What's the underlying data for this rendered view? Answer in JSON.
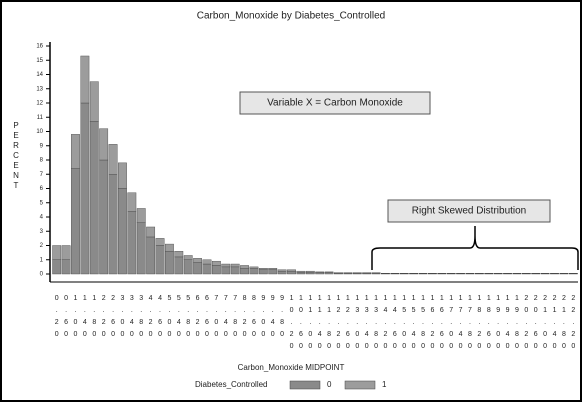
{
  "chart_data": {
    "type": "bar",
    "stacked": true,
    "title": "Carbon_Monoxide by Diabetes_Controlled",
    "y_label": "PERCENT",
    "x_label": "Carbon_Monoxide MIDPOINT",
    "legend_title": "Diabetes_Controlled",
    "annotations": [
      "Variable X = Carbon Monoxide",
      "Right Skewed Distribution"
    ],
    "categories": [
      "0.20",
      "0.60",
      "1.00",
      "1.40",
      "1.80",
      "2.20",
      "2.60",
      "3.00",
      "3.40",
      "3.80",
      "4.20",
      "4.60",
      "5.00",
      "5.40",
      "5.80",
      "6.20",
      "6.60",
      "7.00",
      "7.40",
      "7.80",
      "8.20",
      "8.60",
      "9.00",
      "9.40",
      "9.80",
      "10.20",
      "10.60",
      "11.00",
      "11.40",
      "11.80",
      "12.20",
      "12.60",
      "13.00",
      "13.40",
      "13.80",
      "14.20",
      "14.60",
      "15.00",
      "15.40",
      "15.80",
      "16.20",
      "16.60",
      "17.00",
      "17.40",
      "17.80",
      "18.20",
      "18.60",
      "19.00",
      "19.40",
      "19.80",
      "20.20",
      "20.60",
      "21.00",
      "21.40",
      "21.80",
      "22.20"
    ],
    "series": [
      {
        "name": "0",
        "color": "#8a8a8a",
        "values": [
          1,
          1,
          7.4,
          12,
          10.7,
          8,
          7,
          6,
          4.4,
          3.6,
          2.6,
          2,
          1.6,
          1.2,
          1,
          0.8,
          0.7,
          0.6,
          0.5,
          0.5,
          0.4,
          0.4,
          0.3,
          0.3,
          0.2,
          0.2,
          0.1,
          0.1,
          0.1,
          0.1,
          0.05,
          0.05,
          0.05,
          0.05,
          0.05,
          0.03,
          0.03,
          0.03,
          0.03,
          0.03,
          0.03,
          0.03,
          0.03,
          0.03,
          0.03,
          0.03,
          0.03,
          0.03,
          0.03,
          0.03,
          0.03,
          0.03,
          0.03,
          0.03,
          0.03,
          0.03
        ]
      },
      {
        "name": "1",
        "color": "#9c9c9c",
        "values": [
          1,
          1,
          2.4,
          3.3,
          2.8,
          2.2,
          2.1,
          1.8,
          1.3,
          1.0,
          0.7,
          0.5,
          0.5,
          0.4,
          0.3,
          0.3,
          0.3,
          0.3,
          0.2,
          0.2,
          0.2,
          0.1,
          0.1,
          0.1,
          0.1,
          0.1,
          0.1,
          0.1,
          0.05,
          0.05,
          0.05,
          0.05,
          0.05,
          0.05,
          0.05,
          0.02,
          0.02,
          0.02,
          0.02,
          0.02,
          0.02,
          0.02,
          0.02,
          0.02,
          0.02,
          0.02,
          0.02,
          0.02,
          0.02,
          0.02,
          0.02,
          0.02,
          0.02,
          0.02,
          0.02,
          0.02
        ]
      }
    ],
    "ylim": [
      0,
      16
    ],
    "yticks": [
      0,
      1,
      2,
      3,
      4,
      5,
      6,
      7,
      8,
      9,
      10,
      11,
      12,
      13,
      14,
      15,
      16
    ]
  }
}
